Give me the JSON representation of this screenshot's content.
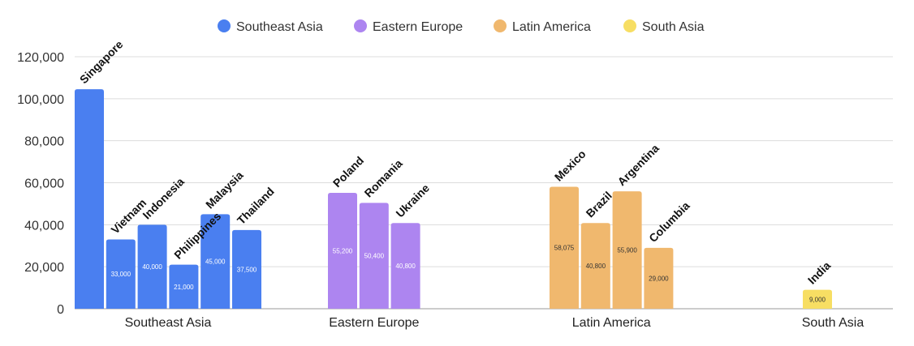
{
  "chart_data": {
    "type": "bar",
    "title": "",
    "xlabel": "",
    "ylabel": "",
    "ylim": [
      0,
      120000
    ],
    "yticks": [
      0,
      20000,
      40000,
      60000,
      80000,
      100000,
      120000
    ],
    "ytick_labels": [
      "0",
      "20,000",
      "40,000",
      "60,000",
      "80,000",
      "100,000",
      "120,000"
    ],
    "grid": true,
    "legend_position": "top-center",
    "series": [
      {
        "name": "Southeast Asia",
        "color": "#4a7ff0"
      },
      {
        "name": "Eastern Europe",
        "color": "#ad85f0"
      },
      {
        "name": "Latin America",
        "color": "#f0b86e"
      },
      {
        "name": "South Asia",
        "color": "#f7de63"
      }
    ],
    "groups": [
      {
        "name": "Southeast Asia",
        "color": "#4a7ff0",
        "bars": [
          {
            "country": "Singapore",
            "value": 104500,
            "label": ""
          },
          {
            "country": "Vietnam",
            "value": 33000,
            "label": "33,000"
          },
          {
            "country": "Indonesia",
            "value": 40000,
            "label": "40,000"
          },
          {
            "country": "Philippines",
            "value": 21000,
            "label": "21,000"
          },
          {
            "country": "Malaysia",
            "value": 45000,
            "label": "45,000"
          },
          {
            "country": "Thailand",
            "value": 37500,
            "label": "37,500"
          }
        ]
      },
      {
        "name": "Eastern Europe",
        "color": "#ad85f0",
        "bars": [
          {
            "country": "Poland",
            "value": 55200,
            "label": "55,200"
          },
          {
            "country": "Romania",
            "value": 50400,
            "label": "50,400"
          },
          {
            "country": "Ukraine",
            "value": 40800,
            "label": "40,800"
          }
        ]
      },
      {
        "name": "Latin America",
        "color": "#f0b86e",
        "bars": [
          {
            "country": "Mexico",
            "value": 58075,
            "label": "58,075"
          },
          {
            "country": "Brazil",
            "value": 40800,
            "label": "40,800"
          },
          {
            "country": "Argentina",
            "value": 55900,
            "label": "55,900"
          },
          {
            "country": "Columbia",
            "value": 29000,
            "label": "29,000"
          }
        ]
      },
      {
        "name": "South Asia",
        "color": "#f7de63",
        "bars": [
          {
            "country": "India",
            "value": 9000,
            "label": "9,000"
          }
        ]
      }
    ]
  }
}
